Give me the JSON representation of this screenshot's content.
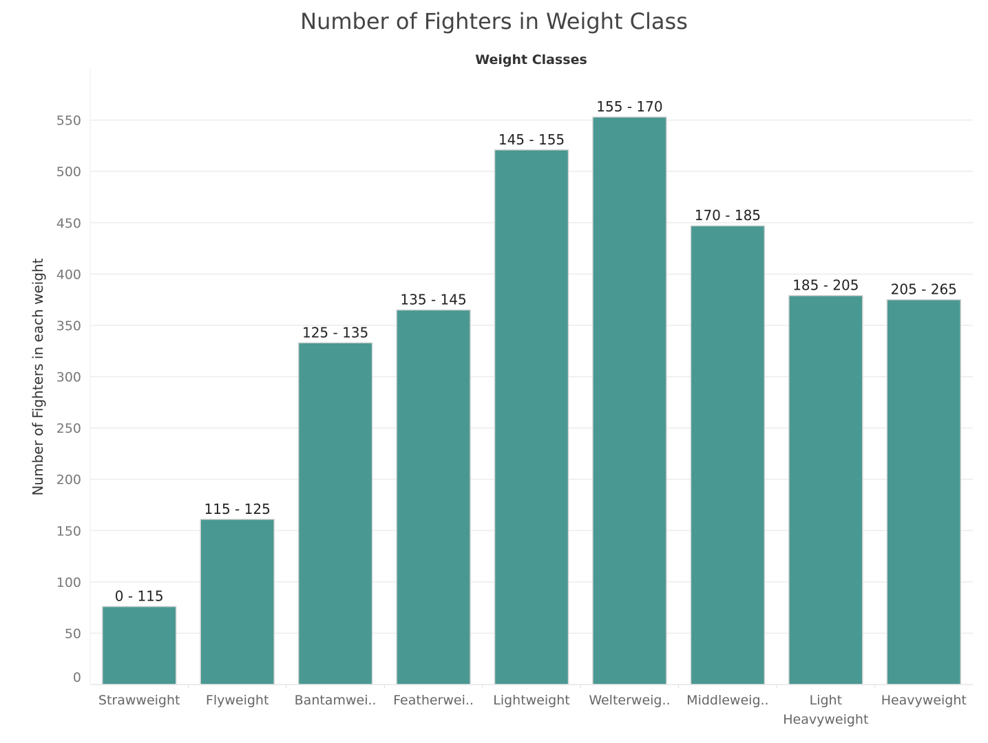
{
  "chart_data": {
    "type": "bar",
    "title": "Number of Fighters in Weight Class",
    "subtitle": "Weight Classes",
    "ylabel": "Number of Fighters in each weight",
    "xlabel": "",
    "ylim": [
      0,
      600
    ],
    "yticks": [
      0,
      50,
      100,
      150,
      200,
      250,
      300,
      350,
      400,
      450,
      500,
      550
    ],
    "grid": true,
    "bar_color": "#4a9892",
    "categories": [
      [
        "Strawweight"
      ],
      [
        "Flyweight"
      ],
      [
        "Bantamwei.."
      ],
      [
        "Featherwei.."
      ],
      [
        "Lightweight"
      ],
      [
        "Welterweig.."
      ],
      [
        "Middleweig.."
      ],
      [
        "Light",
        "Heavyweight"
      ],
      [
        "Heavyweight"
      ]
    ],
    "values": [
      76,
      161,
      333,
      365,
      521,
      553,
      447,
      379,
      375
    ],
    "data_labels": [
      "0 - 115",
      "115 - 125",
      "125 - 135",
      "135 - 145",
      "145 - 155",
      "155 - 170",
      "170 - 185",
      "185 - 205",
      "205 - 265"
    ]
  }
}
